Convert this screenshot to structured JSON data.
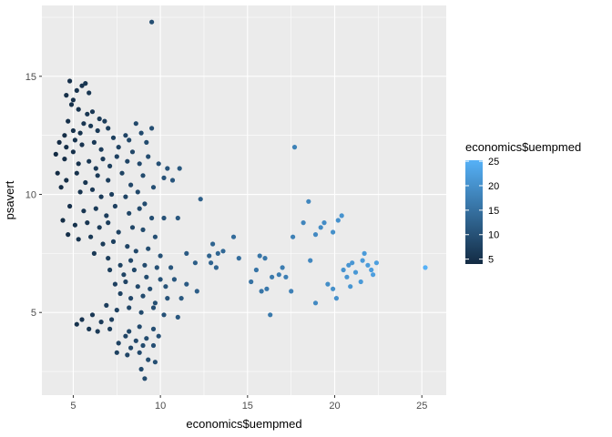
{
  "chart_data": {
    "type": "scatter",
    "xlabel": "economics$uempmed",
    "ylabel": "psavert",
    "xlim": [
      3.2,
      26.4
    ],
    "ylim": [
      1.5,
      18.0
    ],
    "x_ticks": [
      5,
      10,
      15,
      20,
      25
    ],
    "x_tick_labels": [
      "5",
      "10",
      "15",
      "20",
      "25"
    ],
    "y_ticks": [
      5,
      10,
      15
    ],
    "y_tick_labels": [
      "5",
      "10",
      "15"
    ],
    "grid": true,
    "background_color": "#ebebeb",
    "gridline_color": "#ffffff",
    "point_color_low": "#132b43",
    "point_color_high": "#56b1f7",
    "legend": {
      "title": "economics$uempmed",
      "placement": "right",
      "range": [
        4,
        25.2
      ],
      "ticks": [
        5,
        10,
        15,
        20,
        25
      ],
      "tick_labels": [
        "5",
        "10",
        "15",
        "20",
        "25"
      ]
    },
    "points": [
      [
        4.8,
        14.8
      ],
      [
        5.5,
        14.6
      ],
      [
        5.7,
        14.7
      ],
      [
        5.2,
        14.4
      ],
      [
        4.6,
        14.2
      ],
      [
        5.0,
        14.0
      ],
      [
        5.9,
        14.3
      ],
      [
        4.9,
        13.8
      ],
      [
        5.3,
        13.6
      ],
      [
        5.8,
        13.4
      ],
      [
        6.1,
        13.5
      ],
      [
        6.5,
        13.2
      ],
      [
        5.6,
        13.0
      ],
      [
        4.7,
        13.1
      ],
      [
        5.0,
        12.7
      ],
      [
        4.5,
        12.5
      ],
      [
        5.4,
        12.6
      ],
      [
        6.0,
        12.9
      ],
      [
        6.4,
        12.7
      ],
      [
        6.8,
        13.1
      ],
      [
        7.0,
        12.8
      ],
      [
        4.2,
        12.2
      ],
      [
        4.6,
        12.0
      ],
      [
        5.1,
        12.3
      ],
      [
        5.5,
        12.1
      ],
      [
        6.2,
        12.2
      ],
      [
        6.6,
        11.9
      ],
      [
        7.3,
        12.4
      ],
      [
        7.6,
        12.0
      ],
      [
        8.0,
        12.5
      ],
      [
        8.6,
        13.0
      ],
      [
        8.2,
        12.3
      ],
      [
        8.9,
        12.6
      ],
      [
        9.5,
        12.8
      ],
      [
        9.2,
        12.2
      ],
      [
        4.0,
        11.7
      ],
      [
        4.5,
        11.5
      ],
      [
        5.0,
        11.8
      ],
      [
        5.3,
        11.3
      ],
      [
        5.9,
        11.4
      ],
      [
        6.3,
        11.1
      ],
      [
        6.7,
        11.5
      ],
      [
        7.1,
        11.2
      ],
      [
        7.5,
        11.6
      ],
      [
        8.1,
        11.4
      ],
      [
        8.4,
        11.8
      ],
      [
        8.8,
        11.3
      ],
      [
        9.3,
        11.6
      ],
      [
        9.9,
        11.3
      ],
      [
        10.4,
        11.1
      ],
      [
        11.1,
        11.1
      ],
      [
        10.7,
        10.6
      ],
      [
        4.1,
        10.9
      ],
      [
        4.6,
        10.6
      ],
      [
        5.2,
        10.9
      ],
      [
        5.7,
        10.5
      ],
      [
        6.4,
        10.8
      ],
      [
        7.0,
        10.6
      ],
      [
        7.8,
        10.9
      ],
      [
        8.3,
        10.4
      ],
      [
        9.0,
        10.8
      ],
      [
        9.6,
        10.3
      ],
      [
        10.2,
        10.7
      ],
      [
        4.3,
        10.3
      ],
      [
        5.4,
        10.1
      ],
      [
        6.1,
        10.2
      ],
      [
        6.6,
        9.9
      ],
      [
        7.2,
        10.0
      ],
      [
        8.0,
        9.9
      ],
      [
        8.7,
        10.1
      ],
      [
        9.1,
        9.6
      ],
      [
        4.8,
        9.5
      ],
      [
        5.6,
        9.3
      ],
      [
        6.3,
        9.4
      ],
      [
        6.9,
        9.1
      ],
      [
        7.4,
        9.5
      ],
      [
        8.2,
        9.2
      ],
      [
        8.8,
        9.4
      ],
      [
        9.5,
        9.0
      ],
      [
        10.2,
        9.0
      ],
      [
        11.0,
        9.0
      ],
      [
        12.3,
        9.8
      ],
      [
        4.4,
        8.9
      ],
      [
        5.1,
        8.7
      ],
      [
        5.8,
        8.8
      ],
      [
        6.5,
        8.6
      ],
      [
        7.0,
        8.8
      ],
      [
        7.6,
        8.4
      ],
      [
        8.4,
        8.6
      ],
      [
        9.0,
        8.5
      ],
      [
        9.7,
        8.2
      ],
      [
        4.7,
        8.3
      ],
      [
        5.3,
        8.1
      ],
      [
        6.0,
        8.2
      ],
      [
        6.7,
        7.9
      ],
      [
        7.3,
        8.0
      ],
      [
        8.1,
        7.8
      ],
      [
        8.6,
        7.6
      ],
      [
        9.3,
        7.7
      ],
      [
        10.0,
        7.4
      ],
      [
        11.5,
        7.5
      ],
      [
        6.2,
        7.5
      ],
      [
        7.0,
        7.3
      ],
      [
        7.7,
        7.0
      ],
      [
        8.3,
        7.2
      ],
      [
        9.1,
        7.0
      ],
      [
        9.8,
        6.9
      ],
      [
        10.6,
        6.9
      ],
      [
        12.0,
        7.1
      ],
      [
        7.1,
        6.8
      ],
      [
        7.9,
        6.6
      ],
      [
        8.5,
        6.8
      ],
      [
        9.2,
        6.5
      ],
      [
        10.0,
        6.4
      ],
      [
        10.8,
        6.4
      ],
      [
        7.4,
        6.2
      ],
      [
        8.0,
        6.3
      ],
      [
        8.7,
        6.1
      ],
      [
        9.4,
        6.0
      ],
      [
        10.3,
        6.1
      ],
      [
        11.5,
        6.2
      ],
      [
        7.7,
        5.8
      ],
      [
        8.3,
        5.6
      ],
      [
        9.0,
        5.7
      ],
      [
        9.7,
        5.4
      ],
      [
        10.4,
        5.6
      ],
      [
        11.2,
        5.6
      ],
      [
        12.1,
        5.9
      ],
      [
        6.9,
        5.3
      ],
      [
        7.5,
        5.1
      ],
      [
        8.2,
        5.2
      ],
      [
        8.9,
        5.0
      ],
      [
        9.6,
        5.2
      ],
      [
        10.2,
        4.9
      ],
      [
        11.0,
        4.8
      ],
      [
        5.5,
        4.7
      ],
      [
        6.1,
        4.9
      ],
      [
        6.6,
        4.6
      ],
      [
        7.2,
        4.7
      ],
      [
        5.2,
        4.5
      ],
      [
        5.9,
        4.3
      ],
      [
        6.4,
        4.2
      ],
      [
        7.1,
        4.3
      ],
      [
        8.2,
        4.2
      ],
      [
        8.8,
        4.4
      ],
      [
        9.6,
        4.3
      ],
      [
        8.0,
        4.0
      ],
      [
        8.6,
        3.8
      ],
      [
        9.2,
        3.9
      ],
      [
        9.9,
        4.0
      ],
      [
        7.6,
        3.7
      ],
      [
        8.3,
        3.5
      ],
      [
        9.0,
        3.6
      ],
      [
        9.6,
        3.6
      ],
      [
        7.5,
        3.3
      ],
      [
        8.1,
        3.2
      ],
      [
        8.8,
        3.3
      ],
      [
        9.3,
        3.0
      ],
      [
        9.7,
        2.9
      ],
      [
        8.9,
        2.6
      ],
      [
        9.1,
        2.2
      ],
      [
        9.5,
        17.3
      ],
      [
        13.0,
        7.9
      ],
      [
        13.3,
        7.5
      ],
      [
        13.6,
        7.6
      ],
      [
        12.8,
        7.4
      ],
      [
        12.9,
        7.1
      ],
      [
        13.2,
        6.9
      ],
      [
        14.2,
        8.2
      ],
      [
        14.5,
        7.3
      ],
      [
        15.2,
        6.3
      ],
      [
        15.7,
        7.4
      ],
      [
        16.0,
        7.3
      ],
      [
        15.5,
        6.8
      ],
      [
        16.1,
        6.0
      ],
      [
        15.8,
        5.9
      ],
      [
        16.8,
        6.6
      ],
      [
        17.0,
        6.9
      ],
      [
        16.4,
        6.5
      ],
      [
        17.2,
        6.5
      ],
      [
        17.5,
        5.9
      ],
      [
        16.3,
        4.9
      ],
      [
        17.7,
        12.0
      ],
      [
        17.6,
        8.2
      ],
      [
        18.2,
        8.8
      ],
      [
        18.5,
        9.7
      ],
      [
        18.9,
        8.3
      ],
      [
        19.2,
        8.6
      ],
      [
        19.4,
        8.8
      ],
      [
        19.9,
        8.4
      ],
      [
        20.2,
        8.9
      ],
      [
        20.4,
        9.1
      ],
      [
        18.6,
        7.2
      ],
      [
        18.9,
        5.4
      ],
      [
        19.6,
        6.2
      ],
      [
        19.9,
        6.0
      ],
      [
        20.1,
        5.6
      ],
      [
        20.5,
        6.8
      ],
      [
        20.8,
        7.0
      ],
      [
        20.7,
        6.5
      ],
      [
        21.0,
        7.1
      ],
      [
        21.2,
        6.7
      ],
      [
        21.6,
        7.2
      ],
      [
        21.9,
        7.0
      ],
      [
        22.1,
        6.8
      ],
      [
        22.4,
        7.1
      ],
      [
        22.2,
        6.6
      ],
      [
        21.5,
        6.3
      ],
      [
        20.9,
        6.1
      ],
      [
        21.7,
        7.5
      ],
      [
        25.2,
        6.9
      ]
    ]
  }
}
